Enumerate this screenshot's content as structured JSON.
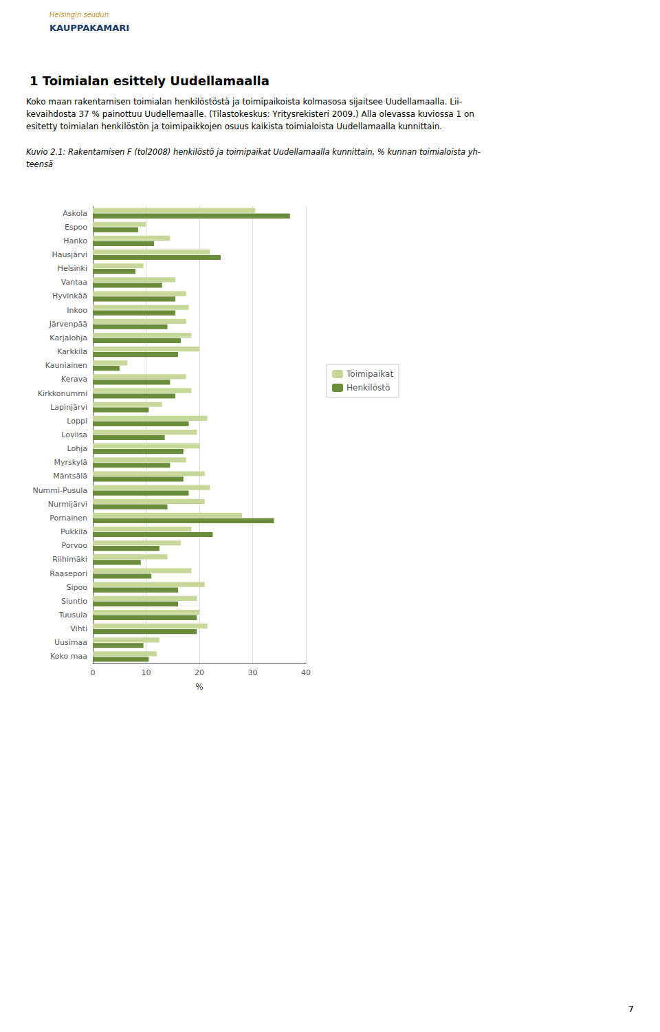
{
  "chart_data": {
    "type": "bar",
    "orientation": "horizontal",
    "title": "1 Toimialan esittely Uudellamaalla",
    "xlabel": "%",
    "categories": [
      "Askola",
      "Espoo",
      "Hanko",
      "Hausjärvi",
      "Helsinki",
      "Vantaa",
      "Hyvinkää",
      "Inkoo",
      "Järvenpää",
      "Karjalohja",
      "Karkkila",
      "Kauniainen",
      "Kerava",
      "Kirkkonummi",
      "Lapinjärvi",
      "Loppi",
      "Loviisa",
      "Lohja",
      "Myrskylä",
      "Mäntsälä",
      "Nummi-Pusula",
      "Nurmijärvi",
      "Pornainen",
      "Pukkila",
      "Porvoo",
      "Riihimäki",
      "Raasepori",
      "Sipoo",
      "Siuntio",
      "Tuusula",
      "Vihti",
      "Uusimaa",
      "Koko maa"
    ],
    "series": [
      {
        "name": "Toimipaikat",
        "color": "#c8d89a",
        "values": [
          30.5,
          10.0,
          14.5,
          22.0,
          9.5,
          15.5,
          17.5,
          18.0,
          17.5,
          18.5,
          20.0,
          6.5,
          17.5,
          18.5,
          13.0,
          21.5,
          19.5,
          20.0,
          17.5,
          21.0,
          22.0,
          21.0,
          28.0,
          18.5,
          16.5,
          14.0,
          18.5,
          21.0,
          19.5,
          20.0,
          21.5,
          12.5,
          12.0
        ]
      },
      {
        "name": "Henkilöstö",
        "color": "#6b8c3a",
        "values": [
          37.0,
          8.5,
          11.5,
          24.0,
          8.0,
          13.0,
          15.5,
          15.5,
          14.0,
          16.5,
          16.0,
          5.0,
          14.5,
          15.5,
          10.5,
          18.0,
          13.5,
          17.0,
          14.5,
          17.0,
          18.0,
          14.0,
          34.0,
          22.5,
          12.5,
          9.0,
          11.0,
          16.0,
          16.0,
          19.5,
          19.5,
          9.5,
          10.5
        ]
      }
    ],
    "xlim": [
      0,
      40
    ],
    "xticks": [
      0,
      10,
      20,
      30,
      40
    ],
    "grid": true,
    "legend": "right",
    "annotations": [
      "Helsingin seudun",
      "KAUPPAKAMARI",
      "Koko maan rakentamisen toimialan henkilöstöstä ja toimipaikoista kolmasosa sijaitsee Uudellamaalla. Lii-",
      "kevaihdosta 37 % painottuu Uudellemaalle. (Tilastokeskus: Yritysrekisteri 2009.) Alla olevassa kuviossa 1 on",
      "esitetty toimialan henkilöstön ja toimipaikkojen osuus kaikista toimialoista Uudellamaalla kunnittain.",
      "Kuvio 2.1: Rakentamisen F (tol2008) henkilöstö ja toimipaikat Uudellamaalla kunnittain, % kunnan toimialoista yh-",
      "teensä",
      "7"
    ]
  }
}
